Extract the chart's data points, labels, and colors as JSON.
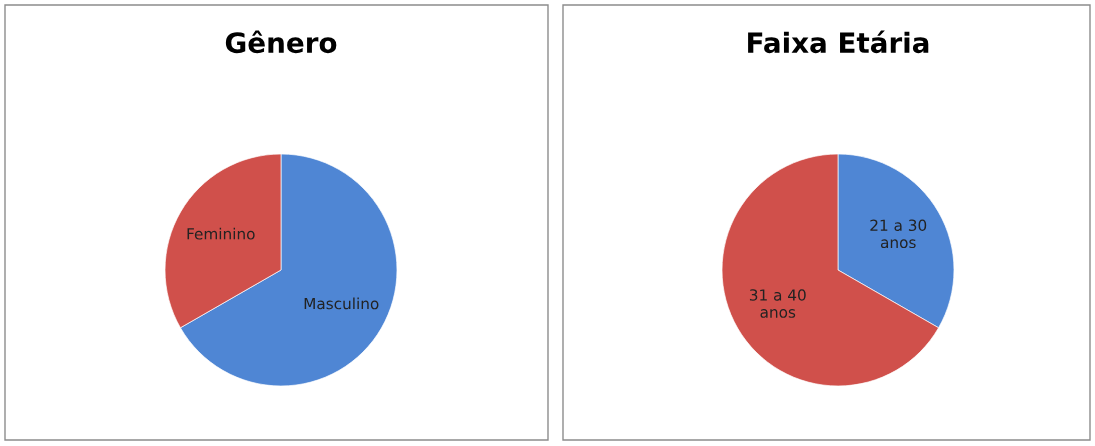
{
  "chart_data": [
    {
      "type": "pie",
      "title": "Gênero",
      "categories": [
        "Masculino",
        "Feminino"
      ],
      "values": [
        66.7,
        33.3
      ],
      "colors": [
        "#4f86d4",
        "#d0504b"
      ]
    },
    {
      "type": "pie",
      "title": "Faixa Etária",
      "categories": [
        "21 a 30\nanos",
        "31 a 40\nanos"
      ],
      "values": [
        33.3,
        66.7
      ],
      "colors": [
        "#4f86d4",
        "#d0504b"
      ]
    }
  ]
}
